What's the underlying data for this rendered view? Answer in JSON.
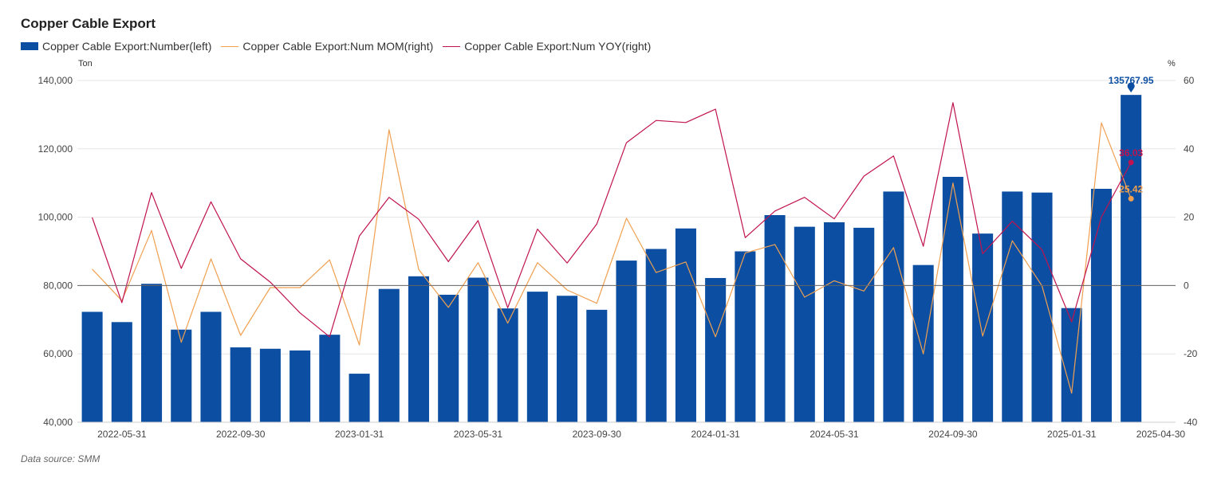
{
  "title": "Copper Cable Export",
  "source": "Data source:  SMM",
  "legend": [
    {
      "label": "Copper Cable Export:Number(left)",
      "type": "bar",
      "color": "#0b4ea2"
    },
    {
      "label": "Copper Cable Export:Num MOM(right)",
      "type": "line",
      "color": "#f0a050"
    },
    {
      "label": "Copper Cable Export:Num YOY(right)",
      "type": "line",
      "color": "#c0134f"
    }
  ],
  "chart_data": {
    "type": "bar",
    "title": "Copper Cable Export",
    "y_left": {
      "unit": "Ton",
      "range": [
        40000,
        140000
      ],
      "ticks": [
        "40,000",
        "60,000",
        "80,000",
        "100,000",
        "120,000",
        "140,000"
      ]
    },
    "y_right": {
      "unit": "%",
      "range": [
        -40,
        60
      ],
      "ticks": [
        "-40",
        "-20",
        "0",
        "20",
        "40",
        "60"
      ]
    },
    "x_tick_labels": [
      "2022-05-31",
      "2022-09-30",
      "2023-01-31",
      "2023-05-31",
      "2023-09-30",
      "2024-01-31",
      "2024-05-31",
      "2024-09-30",
      "2025-01-31",
      "2025-04-30"
    ],
    "categories": [
      "2022-04-30",
      "2022-05-31",
      "2022-06-30",
      "2022-07-31",
      "2022-08-31",
      "2022-09-30",
      "2022-10-31",
      "2022-11-30",
      "2022-12-31",
      "2023-01-31",
      "2023-02-28",
      "2023-03-31",
      "2023-04-30",
      "2023-05-31",
      "2023-06-30",
      "2023-07-31",
      "2023-08-31",
      "2023-09-30",
      "2023-10-31",
      "2023-11-30",
      "2023-12-31",
      "2024-01-31",
      "2024-02-29",
      "2024-03-31",
      "2024-04-30",
      "2024-05-31",
      "2024-06-30",
      "2024-07-31",
      "2024-08-31",
      "2024-09-30",
      "2024-10-31",
      "2024-11-30",
      "2024-12-31",
      "2025-01-31",
      "2025-02-28",
      "2025-03-31",
      "2025-04-30"
    ],
    "series": [
      {
        "name": "Copper Cable Export:Number(left)",
        "type": "bar",
        "axis": "left",
        "color": "#0b4ea2",
        "values": [
          72300,
          69300,
          80500,
          67100,
          72300,
          61900,
          61500,
          61000,
          65600,
          54200,
          79000,
          82700,
          77300,
          82300,
          73300,
          78200,
          77000,
          72900,
          87300,
          90700,
          96700,
          82200,
          90000,
          100600,
          97200,
          98500,
          96900,
          107500,
          86000,
          111800,
          95200,
          107500,
          107200,
          73400,
          108300,
          135767.95,
          null
        ]
      },
      {
        "name": "Copper Cable Export:Num MOM(right)",
        "type": "line",
        "axis": "right",
        "color": "#f0a050",
        "values": [
          4.8,
          -4.4,
          16.1,
          -16.6,
          7.8,
          -14.6,
          -0.6,
          -0.6,
          7.5,
          -17.4,
          45.6,
          4.7,
          -6.4,
          6.7,
          -11.0,
          6.7,
          -1.3,
          -5.2,
          19.7,
          3.8,
          6.9,
          -15.0,
          9.5,
          12.0,
          -3.4,
          1.4,
          -1.6,
          11.1,
          -20.0,
          30.0,
          -14.8,
          13.1,
          -0.1,
          -31.5,
          47.6,
          25.42,
          null
        ],
        "last_label": "25.42"
      },
      {
        "name": "Copper Cable Export:Num YOY(right)",
        "type": "line",
        "axis": "right",
        "color": "#c0134f",
        "values": [
          19.9,
          -5.0,
          27.2,
          5.0,
          24.5,
          7.8,
          1.0,
          -8.0,
          -15.0,
          14.5,
          25.8,
          19.4,
          7.0,
          19.0,
          -6.5,
          16.5,
          6.6,
          18.0,
          41.8,
          48.3,
          47.7,
          51.6,
          14.0,
          21.8,
          25.8,
          19.5,
          32.0,
          37.9,
          11.5,
          53.5,
          9.3,
          18.8,
          10.5,
          -10.6,
          20.0,
          36.03,
          null
        ],
        "last_label": "36.03"
      }
    ],
    "bar_last_label": "135767.95",
    "grid": true,
    "legend_position": "top-left"
  }
}
